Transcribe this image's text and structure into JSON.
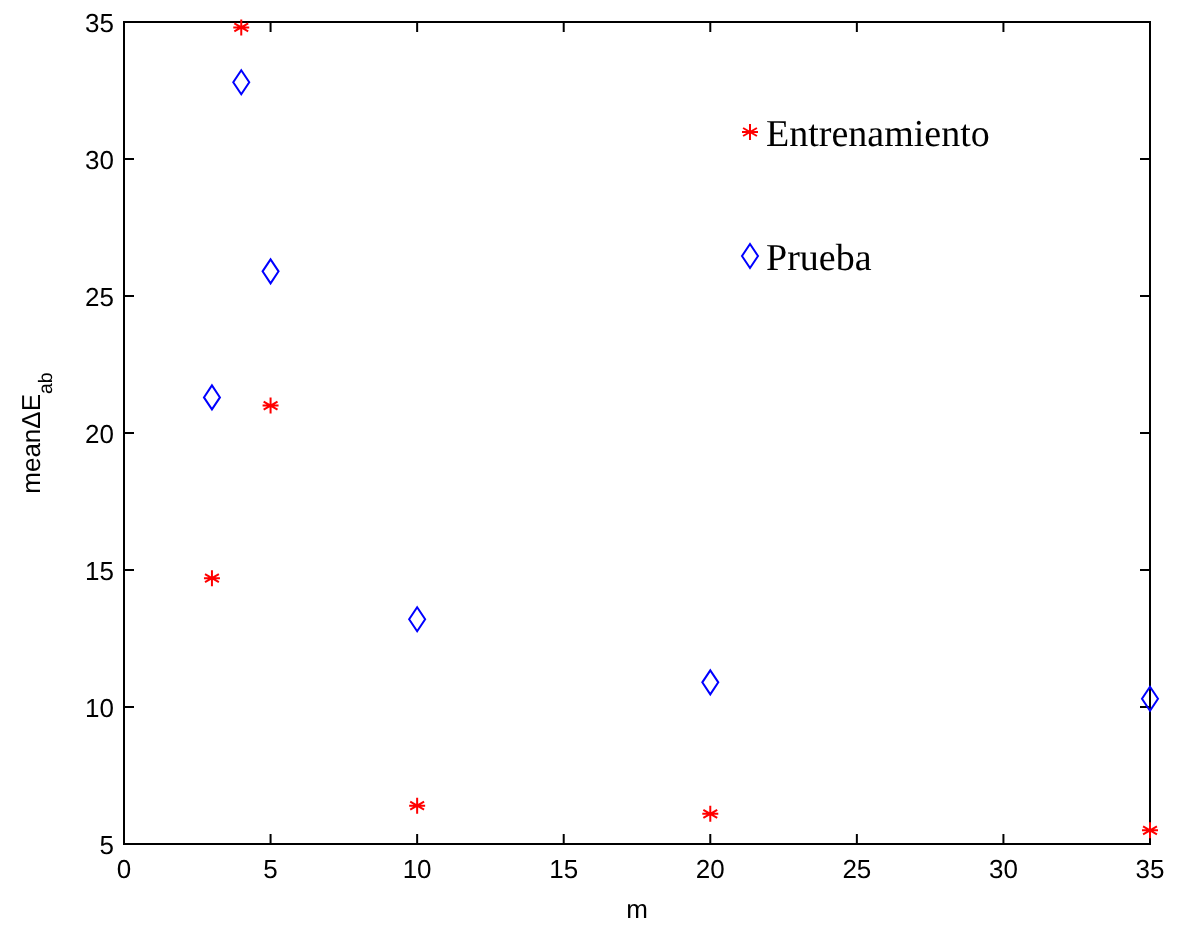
{
  "chart_data": {
    "type": "scatter",
    "xlabel": "m",
    "ylabel": "meanΔE$_{ab}$",
    "x": [
      3,
      4,
      5,
      10,
      20,
      35
    ],
    "series": [
      {
        "name": "Entrenamiento",
        "color": "#ff0000",
        "marker": "cross",
        "values": [
          14.7,
          34.8,
          21.0,
          6.4,
          6.1,
          5.5
        ]
      },
      {
        "name": "Prueba",
        "color": "#0000ff",
        "marker": "diamond",
        "values": [
          21.3,
          32.8,
          25.9,
          13.2,
          10.9,
          10.3
        ]
      }
    ],
    "xlim": [
      0,
      35
    ],
    "xticks": [
      0,
      5,
      10,
      15,
      20,
      25,
      30,
      35
    ],
    "ylim": [
      5,
      35
    ],
    "yticks": [
      5,
      10,
      15,
      20,
      25,
      30,
      35
    ],
    "grid": false,
    "legend": "top right"
  }
}
